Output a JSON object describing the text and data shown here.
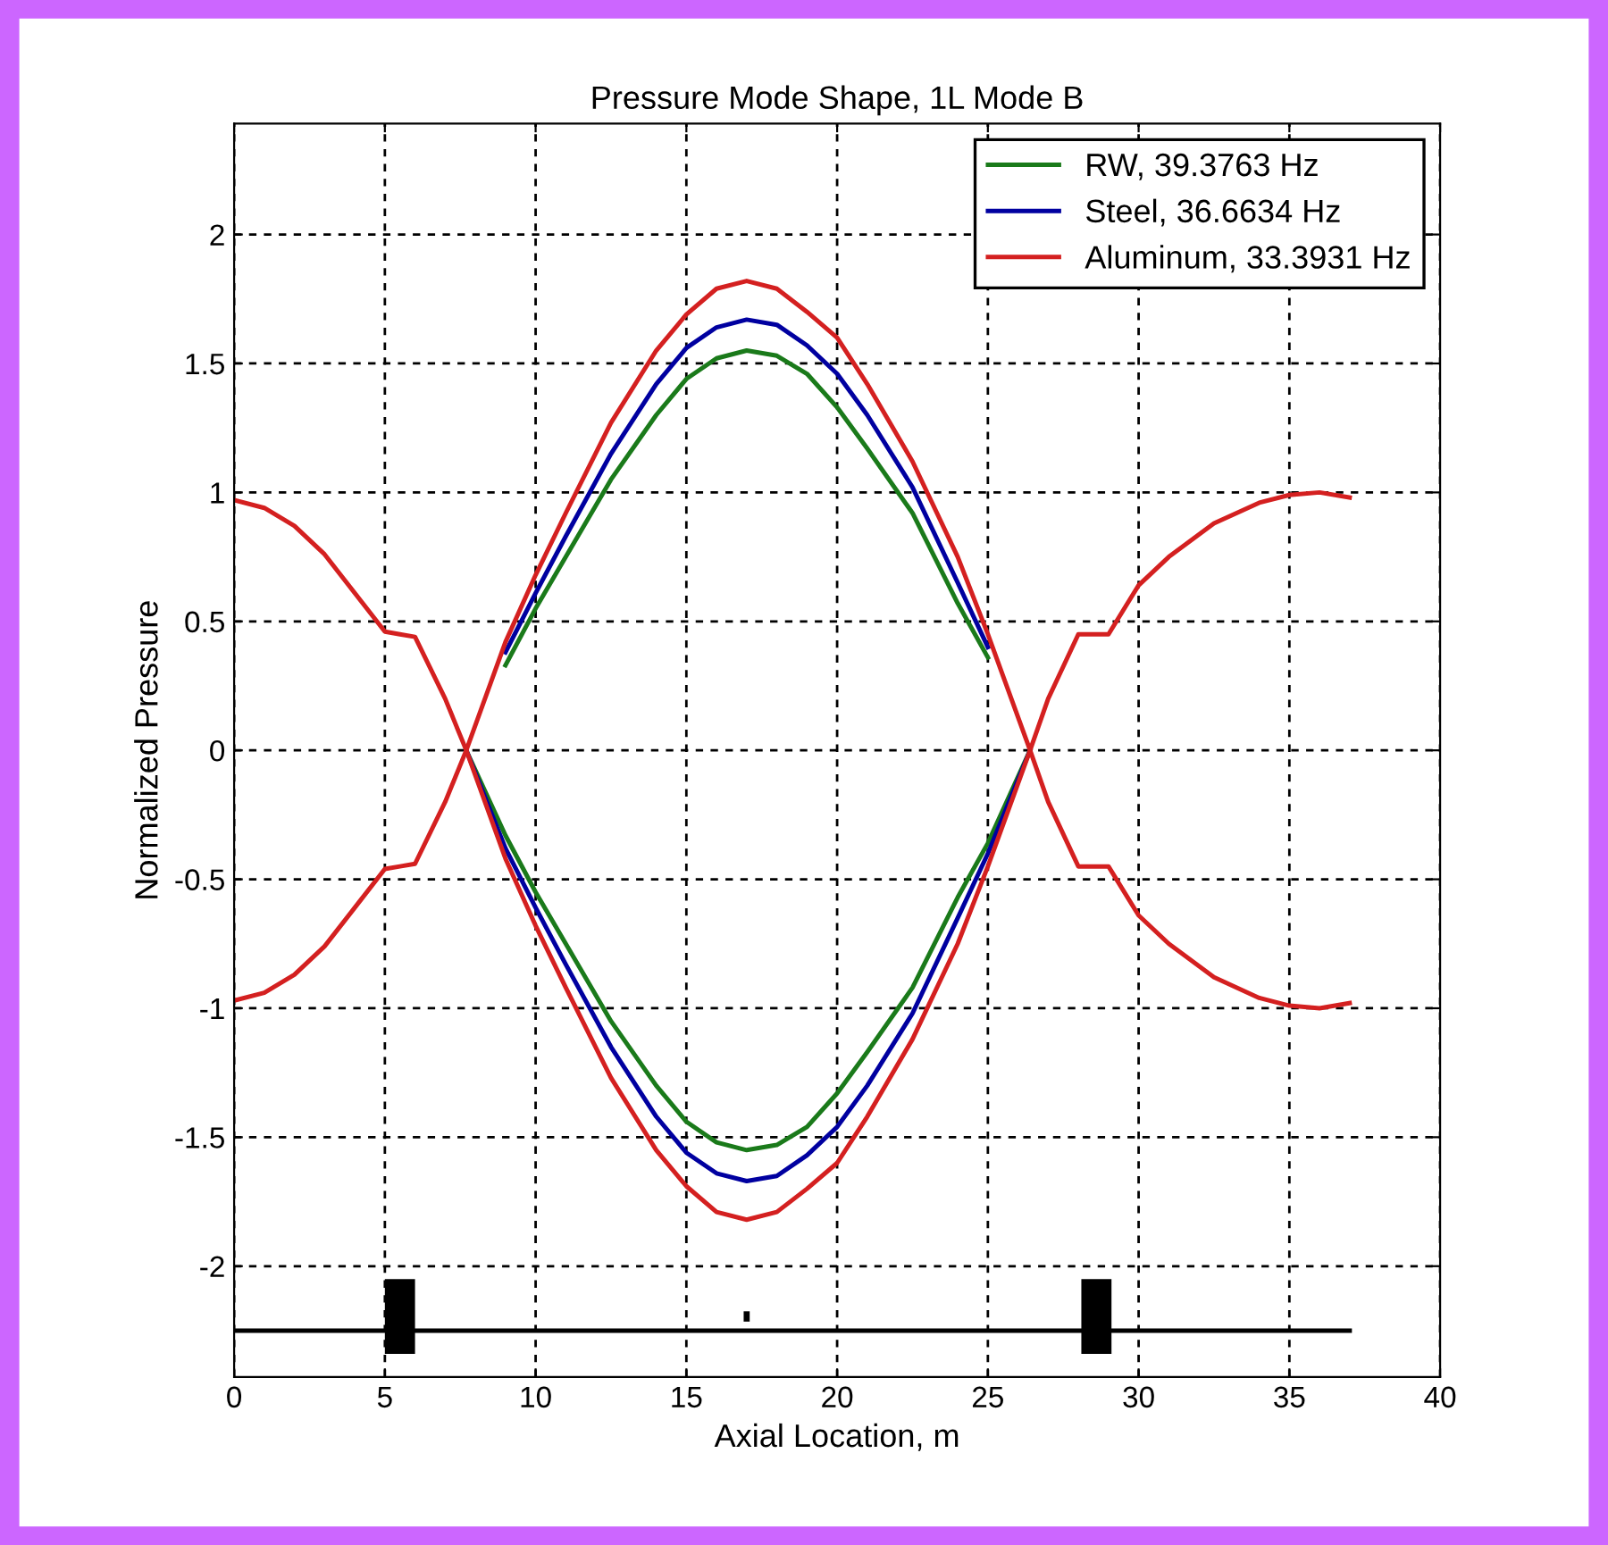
{
  "chart_data": {
    "type": "line",
    "title": "Pressure Mode Shape, 1L Mode B",
    "xlabel": "Axial Location, m",
    "ylabel": "Normalized Pressure",
    "x": [
      0,
      1,
      2,
      3,
      4,
      5,
      5.5,
      6,
      7,
      7.7,
      9,
      10,
      11,
      12.5,
      14,
      15,
      16,
      17,
      18,
      19,
      20,
      21,
      22.5,
      24,
      25,
      26.4,
      27,
      28,
      29,
      30,
      31,
      32.5,
      34,
      35,
      36,
      37
    ],
    "series": [
      {
        "name": "RW, 39.3763 Hz",
        "color": "#1a7a1a",
        "values": [
          null,
          null,
          null,
          null,
          null,
          null,
          null,
          null,
          null,
          0,
          -0.33,
          -0.55,
          -0.75,
          -1.05,
          -1.3,
          -1.44,
          -1.52,
          -1.55,
          -1.53,
          -1.46,
          -1.33,
          -1.17,
          -0.92,
          -0.57,
          -0.36,
          0,
          null,
          null,
          null,
          null,
          null,
          null,
          null,
          null,
          null,
          null
        ]
      },
      {
        "name": "Steel, 36.6634 Hz",
        "color": "#0000a0",
        "values": [
          null,
          null,
          null,
          null,
          null,
          null,
          null,
          null,
          null,
          0,
          -0.38,
          -0.61,
          -0.83,
          -1.15,
          -1.42,
          -1.56,
          -1.64,
          -1.67,
          -1.65,
          -1.57,
          -1.46,
          -1.3,
          -1.02,
          -0.65,
          -0.4,
          0,
          null,
          null,
          null,
          null,
          null,
          null,
          null,
          null,
          null,
          null
        ]
      },
      {
        "name": "Aluminum, 33.3931 Hz",
        "color": "#d42020",
        "values": [
          0.97,
          0.94,
          0.87,
          0.76,
          0.61,
          0.46,
          0.45,
          0.44,
          0.2,
          0,
          -0.42,
          -0.68,
          -0.92,
          -1.27,
          -1.55,
          -1.69,
          -1.79,
          -1.82,
          -1.79,
          -1.7,
          -1.6,
          -1.42,
          -1.12,
          -0.75,
          -0.45,
          0,
          0.2,
          0.45,
          0.45,
          0.64,
          0.75,
          0.88,
          0.96,
          0.99,
          1.0,
          0.98
        ]
      },
      {
        "color": "#1a7a1a",
        "values": [
          null,
          null,
          null,
          null,
          null,
          null,
          null,
          null,
          null,
          null,
          0.33,
          0.55,
          0.75,
          1.05,
          1.3,
          1.44,
          1.52,
          1.55,
          1.53,
          1.46,
          1.33,
          1.17,
          0.92,
          0.57,
          0.36,
          null,
          null,
          null,
          null,
          null,
          null,
          null,
          null,
          null,
          null,
          null
        ]
      },
      {
        "color": "#0000a0",
        "values": [
          null,
          null,
          null,
          null,
          null,
          null,
          null,
          null,
          null,
          null,
          0.38,
          0.61,
          0.83,
          1.15,
          1.42,
          1.56,
          1.64,
          1.67,
          1.65,
          1.57,
          1.46,
          1.3,
          1.02,
          0.65,
          0.4,
          null,
          null,
          null,
          null,
          null,
          null,
          null,
          null,
          null,
          null,
          null
        ]
      },
      {
        "color": "#d42020",
        "values": [
          -0.97,
          -0.94,
          -0.87,
          -0.76,
          -0.61,
          -0.46,
          -0.45,
          -0.44,
          -0.2,
          0,
          0.42,
          0.68,
          0.92,
          1.27,
          1.55,
          1.69,
          1.79,
          1.82,
          1.79,
          1.7,
          1.6,
          1.42,
          1.12,
          0.75,
          0.45,
          0,
          -0.2,
          -0.45,
          -0.45,
          -0.64,
          -0.75,
          -0.88,
          -0.96,
          -0.99,
          -1.0,
          -0.98
        ]
      },
      {
        "color": "#000000",
        "x": [
          0,
          37
        ],
        "values": [
          -2.25,
          -2.25
        ]
      }
    ],
    "xlim": [
      0,
      40
    ],
    "xticks": [
      0,
      5,
      10,
      15,
      20,
      25,
      30,
      35,
      40
    ],
    "ylim": [
      -2.43,
      2.43
    ],
    "yticks": [
      -2,
      -1.5,
      -1,
      -0.5,
      0,
      0.5,
      1,
      1.5,
      2
    ],
    "grid": true,
    "legend": "top right",
    "line_style": "solid",
    "marker": "none"
  }
}
